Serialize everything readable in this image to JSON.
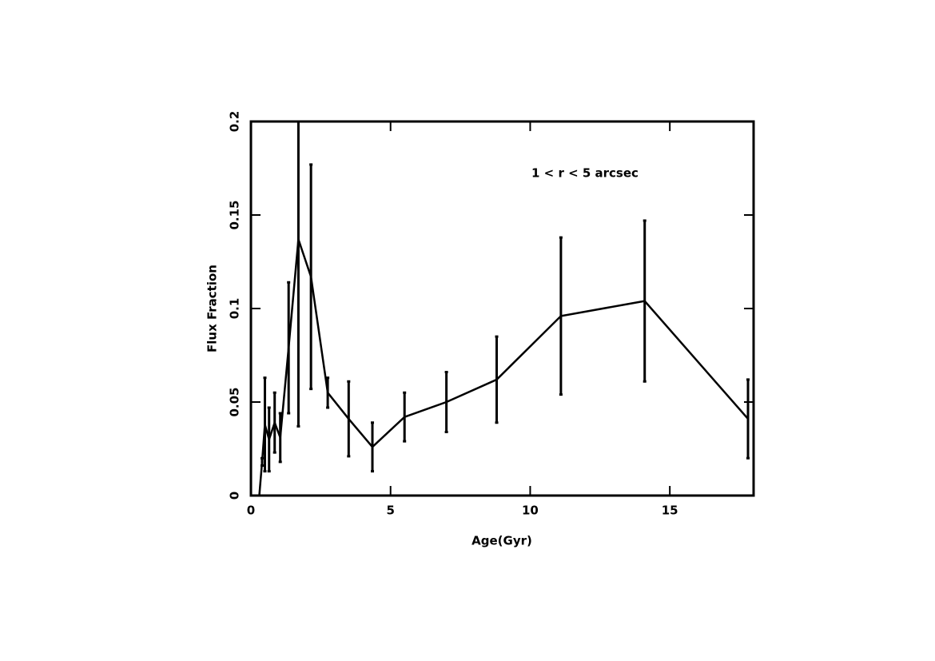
{
  "chart_data": {
    "type": "line",
    "xlabel": "Age(Gyr)",
    "ylabel": "Flux Fraction",
    "annotation": "1 < r < 5 arcsec",
    "x": [
      0.3,
      0.4,
      0.5,
      0.65,
      0.85,
      1.05,
      1.35,
      1.7,
      2.15,
      2.75,
      3.5,
      4.35,
      5.5,
      7.0,
      8.8,
      11.1,
      14.1,
      17.8
    ],
    "series": [
      {
        "color": "#000000",
        "values": [
          0,
          0.018,
          0.038,
          0.03,
          0.039,
          0.031,
          0.079,
          0.137,
          0.117,
          0.055,
          0.041,
          0.026,
          0.042,
          0.05,
          0.062,
          0.096,
          0.104,
          0.041
        ],
        "errors": [
          0,
          0.002,
          0.025,
          0.017,
          0.016,
          0.013,
          0.035,
          0.1,
          0.06,
          0.008,
          0.02,
          0.013,
          0.013,
          0.016,
          0.023,
          0.042,
          0.043,
          0.021
        ]
      }
    ],
    "xlim": [
      0,
      18
    ],
    "xticks": [
      0,
      5,
      10,
      15
    ],
    "ylim": [
      0,
      0.2
    ],
    "yticks": [
      0,
      0.05,
      0.1,
      0.15,
      0.2
    ]
  }
}
